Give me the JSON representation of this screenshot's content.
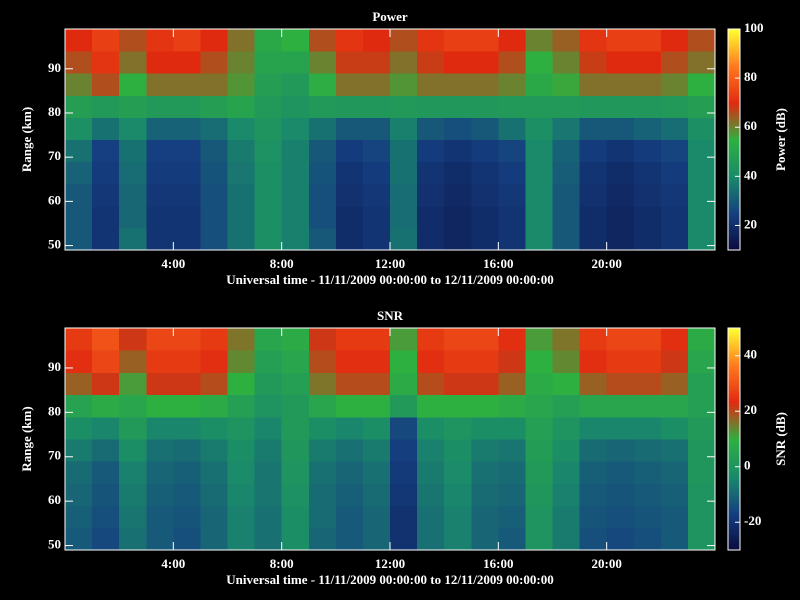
{
  "chart_data": [
    {
      "type": "heatmap",
      "title": "Power",
      "xlabel": "Universal time - 11/11/2009 00:00:00 to 12/11/2009 00:00:00",
      "ylabel": "Range (km)",
      "colorbar_label": "Power (dB)",
      "x_bins": [
        0,
        1,
        2,
        3,
        4,
        5,
        6,
        7,
        8,
        9,
        10,
        11,
        12,
        13,
        14,
        15,
        16,
        17,
        18,
        19,
        20,
        21,
        22,
        23,
        24
      ],
      "y_bins": [
        49,
        54,
        59,
        64,
        69,
        74,
        79,
        84,
        89,
        94,
        99
      ],
      "xlim": [
        0,
        24
      ],
      "ylim": [
        49,
        99
      ],
      "xticks": [
        {
          "value": 4,
          "label": "4:00"
        },
        {
          "value": 8,
          "label": "8:00"
        },
        {
          "value": 12,
          "label": "12:00"
        },
        {
          "value": 16,
          "label": "16:00"
        },
        {
          "value": 20,
          "label": "20:00"
        }
      ],
      "yticks": [
        50,
        60,
        70,
        80,
        90
      ],
      "clim": [
        10,
        100
      ],
      "cticks": [
        20,
        40,
        60,
        80,
        100
      ],
      "colormap": [
        "#0a0a3c",
        "#153f80",
        "#1a8a6a",
        "#2eb040",
        "#e02a10",
        "#ff7a20",
        "#ffff30"
      ],
      "values": [
        [
          30,
          22,
          35,
          22,
          22,
          28,
          35,
          42,
          38,
          30,
          20,
          22,
          35,
          20,
          18,
          20,
          22,
          40,
          30,
          20,
          18,
          20,
          22,
          40
        ],
        [
          30,
          22,
          33,
          22,
          22,
          28,
          35,
          42,
          38,
          28,
          20,
          22,
          34,
          20,
          18,
          20,
          22,
          40,
          30,
          20,
          18,
          20,
          22,
          40
        ],
        [
          30,
          23,
          33,
          23,
          23,
          28,
          35,
          42,
          38,
          28,
          21,
          23,
          34,
          21,
          19,
          21,
          23,
          40,
          30,
          21,
          19,
          21,
          23,
          40
        ],
        [
          32,
          24,
          34,
          24,
          24,
          29,
          36,
          42,
          38,
          29,
          22,
          24,
          35,
          22,
          20,
          22,
          24,
          40,
          31,
          22,
          20,
          22,
          24,
          40
        ],
        [
          35,
          25,
          35,
          25,
          25,
          30,
          37,
          43,
          38,
          30,
          24,
          26,
          35,
          24,
          22,
          24,
          26,
          40,
          32,
          24,
          22,
          24,
          26,
          40
        ],
        [
          42,
          35,
          40,
          32,
          32,
          34,
          40,
          44,
          40,
          35,
          30,
          30,
          38,
          30,
          28,
          30,
          35,
          42,
          36,
          30,
          30,
          32,
          34,
          42
        ],
        [
          48,
          46,
          48,
          46,
          46,
          48,
          50,
          46,
          44,
          46,
          45,
          45,
          46,
          45,
          45,
          45,
          46,
          46,
          46,
          45,
          45,
          45,
          46,
          48
        ],
        [
          60,
          66,
          55,
          62,
          62,
          62,
          58,
          48,
          46,
          54,
          62,
          62,
          58,
          62,
          62,
          62,
          60,
          52,
          56,
          62,
          62,
          62,
          60,
          55
        ],
        [
          66,
          72,
          62,
          70,
          70,
          66,
          60,
          50,
          50,
          60,
          68,
          68,
          62,
          68,
          70,
          70,
          66,
          55,
          60,
          68,
          70,
          70,
          66,
          62
        ],
        [
          70,
          74,
          66,
          72,
          74,
          70,
          62,
          52,
          55,
          66,
          72,
          70,
          66,
          72,
          74,
          74,
          70,
          60,
          64,
          72,
          74,
          74,
          70,
          66
        ]
      ]
    },
    {
      "type": "heatmap",
      "title": "SNR",
      "xlabel": "Universal time - 11/11/2009 00:00:00 to 12/11/2009 00:00:00",
      "ylabel": "Range (km)",
      "colorbar_label": "SNR (dB)",
      "x_bins": [
        0,
        1,
        2,
        3,
        4,
        5,
        6,
        7,
        8,
        9,
        10,
        11,
        12,
        13,
        14,
        15,
        16,
        17,
        18,
        19,
        20,
        21,
        22,
        23,
        24
      ],
      "y_bins": [
        49,
        54,
        59,
        64,
        69,
        74,
        79,
        84,
        89,
        94,
        99
      ],
      "xlim": [
        0,
        24
      ],
      "ylim": [
        49,
        99
      ],
      "xticks": [
        {
          "value": 4,
          "label": "4:00"
        },
        {
          "value": 8,
          "label": "8:00"
        },
        {
          "value": 12,
          "label": "12:00"
        },
        {
          "value": 16,
          "label": "16:00"
        },
        {
          "value": 20,
          "label": "20:00"
        }
      ],
      "yticks": [
        50,
        60,
        70,
        80,
        90
      ],
      "clim": [
        -30,
        50
      ],
      "cticks": [
        -20,
        0,
        20,
        40
      ],
      "colormap": [
        "#0a0a3c",
        "#153f80",
        "#1a8a6a",
        "#2eb040",
        "#e02a10",
        "#ff7a20",
        "#ffff30"
      ],
      "values": [
        [
          -12,
          -15,
          -8,
          -12,
          -14,
          -10,
          -5,
          -8,
          -2,
          -10,
          -12,
          -10,
          -20,
          -8,
          -5,
          -10,
          -12,
          0,
          -6,
          -14,
          -15,
          -14,
          -12,
          0
        ],
        [
          -11,
          -14,
          -7,
          -12,
          -13,
          -10,
          -5,
          -8,
          -2,
          -9,
          -12,
          -10,
          -20,
          -8,
          -5,
          -10,
          -11,
          0,
          -6,
          -13,
          -14,
          -13,
          -12,
          0
        ],
        [
          -10,
          -13,
          -6,
          -11,
          -12,
          -9,
          -4,
          -7,
          -1,
          -9,
          -11,
          -9,
          -19,
          -7,
          -4,
          -9,
          -10,
          1,
          -5,
          -12,
          -13,
          -12,
          -11,
          0
        ],
        [
          -9,
          -12,
          -5,
          -10,
          -11,
          -8,
          -3,
          -7,
          0,
          -8,
          -10,
          -8,
          -18,
          -6,
          -3,
          -8,
          -9,
          2,
          -4,
          -11,
          -12,
          -11,
          -10,
          1
        ],
        [
          -6,
          -9,
          -2,
          -8,
          -9,
          -6,
          -2,
          -6,
          1,
          -6,
          -8,
          -6,
          -17,
          -5,
          -2,
          -6,
          -7,
          3,
          -2,
          -9,
          -10,
          -9,
          -8,
          1
        ],
        [
          -2,
          -4,
          2,
          -4,
          -4,
          -2,
          0,
          -4,
          2,
          -2,
          -4,
          -2,
          -15,
          -2,
          0,
          -2,
          -2,
          4,
          0,
          -4,
          -4,
          -4,
          -2,
          2
        ],
        [
          5,
          8,
          6,
          10,
          10,
          8,
          4,
          0,
          2,
          6,
          10,
          10,
          2,
          10,
          10,
          10,
          8,
          6,
          4,
          6,
          6,
          6,
          6,
          4
        ],
        [
          18,
          22,
          12,
          22,
          22,
          20,
          10,
          2,
          4,
          16,
          20,
          20,
          8,
          20,
          22,
          22,
          18,
          8,
          10,
          18,
          20,
          20,
          18,
          4
        ],
        [
          24,
          28,
          18,
          26,
          26,
          24,
          14,
          4,
          6,
          20,
          24,
          24,
          10,
          24,
          26,
          26,
          22,
          10,
          14,
          24,
          26,
          26,
          22,
          6
        ],
        [
          26,
          30,
          22,
          28,
          28,
          26,
          16,
          6,
          8,
          22,
          26,
          26,
          12,
          26,
          28,
          28,
          24,
          12,
          16,
          26,
          28,
          28,
          24,
          8
        ]
      ]
    }
  ]
}
